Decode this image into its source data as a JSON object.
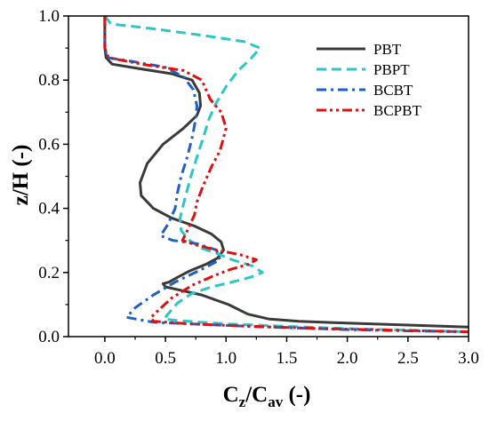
{
  "chart_data": {
    "type": "line",
    "title": "",
    "xlabel": {
      "main": "C",
      "main_sub": "z",
      "sep": "/C",
      "sep_sub": "av",
      "unit": " (-)"
    },
    "ylabel": "z/H (-)",
    "xlim": [
      -0.3,
      3.0
    ],
    "ylim": [
      0.0,
      1.0
    ],
    "xticks": [
      "0.0",
      "0.5",
      "1.0",
      "1.5",
      "2.0",
      "2.5",
      "3.0"
    ],
    "yticks": [
      "0.0",
      "0.2",
      "0.4",
      "0.6",
      "0.8",
      "1.0"
    ],
    "grid": false,
    "legend_position": "top-right",
    "series": [
      {
        "name": "PBT",
        "color": "#3a3a3a",
        "dash": "solid",
        "points": [
          [
            0.0,
            1.0
          ],
          [
            0.0,
            0.9
          ],
          [
            0.01,
            0.87
          ],
          [
            0.06,
            0.85
          ],
          [
            0.3,
            0.835
          ],
          [
            0.55,
            0.82
          ],
          [
            0.72,
            0.8
          ],
          [
            0.78,
            0.76
          ],
          [
            0.79,
            0.72
          ],
          [
            0.76,
            0.69
          ],
          [
            0.65,
            0.65
          ],
          [
            0.48,
            0.6
          ],
          [
            0.35,
            0.54
          ],
          [
            0.29,
            0.48
          ],
          [
            0.3,
            0.44
          ],
          [
            0.4,
            0.4
          ],
          [
            0.55,
            0.37
          ],
          [
            0.74,
            0.345
          ],
          [
            0.88,
            0.32
          ],
          [
            0.96,
            0.295
          ],
          [
            0.98,
            0.27
          ],
          [
            0.93,
            0.245
          ],
          [
            0.83,
            0.225
          ],
          [
            0.7,
            0.205
          ],
          [
            0.6,
            0.185
          ],
          [
            0.53,
            0.17
          ],
          [
            0.48,
            0.165
          ],
          [
            0.5,
            0.155
          ],
          [
            0.62,
            0.145
          ],
          [
            0.8,
            0.13
          ],
          [
            1.02,
            0.1
          ],
          [
            1.18,
            0.07
          ],
          [
            1.35,
            0.055
          ],
          [
            1.6,
            0.048
          ],
          [
            2.0,
            0.042
          ],
          [
            2.5,
            0.036
          ],
          [
            3.0,
            0.03
          ]
        ]
      },
      {
        "name": "PBPT",
        "color": "#2bc6c6",
        "dash": "dash",
        "points": [
          [
            0.0,
            1.0
          ],
          [
            0.05,
            0.975
          ],
          [
            0.4,
            0.96
          ],
          [
            0.8,
            0.94
          ],
          [
            1.15,
            0.92
          ],
          [
            1.28,
            0.9
          ],
          [
            1.2,
            0.865
          ],
          [
            1.1,
            0.83
          ],
          [
            1.0,
            0.78
          ],
          [
            0.92,
            0.73
          ],
          [
            0.86,
            0.68
          ],
          [
            0.82,
            0.63
          ],
          [
            0.76,
            0.56
          ],
          [
            0.71,
            0.5
          ],
          [
            0.66,
            0.43
          ],
          [
            0.62,
            0.37
          ],
          [
            0.63,
            0.33
          ],
          [
            0.7,
            0.3
          ],
          [
            0.8,
            0.275
          ],
          [
            0.92,
            0.26
          ],
          [
            1.05,
            0.24
          ],
          [
            1.22,
            0.22
          ],
          [
            1.3,
            0.2
          ],
          [
            1.2,
            0.185
          ],
          [
            1.05,
            0.17
          ],
          [
            0.88,
            0.155
          ],
          [
            0.72,
            0.135
          ],
          [
            0.6,
            0.105
          ],
          [
            0.52,
            0.07
          ],
          [
            0.49,
            0.055
          ],
          [
            0.6,
            0.05
          ],
          [
            1.0,
            0.04
          ],
          [
            1.5,
            0.032
          ],
          [
            2.0,
            0.025
          ],
          [
            2.5,
            0.02
          ],
          [
            3.0,
            0.015
          ]
        ]
      },
      {
        "name": "BCBT",
        "color": "#1f5fc8",
        "dash": "dashdot",
        "points": [
          [
            0.0,
            1.0
          ],
          [
            0.0,
            0.9
          ],
          [
            0.02,
            0.87
          ],
          [
            0.2,
            0.86
          ],
          [
            0.5,
            0.84
          ],
          [
            0.65,
            0.81
          ],
          [
            0.73,
            0.77
          ],
          [
            0.76,
            0.72
          ],
          [
            0.75,
            0.68
          ],
          [
            0.72,
            0.62
          ],
          [
            0.68,
            0.56
          ],
          [
            0.63,
            0.5
          ],
          [
            0.6,
            0.45
          ],
          [
            0.58,
            0.4
          ],
          [
            0.52,
            0.35
          ],
          [
            0.46,
            0.315
          ],
          [
            0.56,
            0.3
          ],
          [
            0.76,
            0.29
          ],
          [
            0.92,
            0.27
          ],
          [
            0.95,
            0.24
          ],
          [
            0.8,
            0.21
          ],
          [
            0.58,
            0.17
          ],
          [
            0.4,
            0.13
          ],
          [
            0.25,
            0.09
          ],
          [
            0.18,
            0.06
          ],
          [
            0.4,
            0.045
          ],
          [
            1.0,
            0.035
          ],
          [
            1.5,
            0.028
          ],
          [
            2.0,
            0.022
          ],
          [
            2.5,
            0.018
          ],
          [
            3.0,
            0.015
          ]
        ]
      },
      {
        "name": "BCPBT",
        "color": "#e01010",
        "dash": "dashdotdot",
        "points": [
          [
            0.0,
            1.0
          ],
          [
            0.0,
            0.9
          ],
          [
            0.03,
            0.87
          ],
          [
            0.3,
            0.85
          ],
          [
            0.65,
            0.83
          ],
          [
            0.8,
            0.8
          ],
          [
            0.87,
            0.74
          ],
          [
            0.96,
            0.7
          ],
          [
            1.0,
            0.65
          ],
          [
            0.95,
            0.58
          ],
          [
            0.88,
            0.53
          ],
          [
            0.81,
            0.47
          ],
          [
            0.76,
            0.42
          ],
          [
            0.74,
            0.38
          ],
          [
            0.68,
            0.33
          ],
          [
            0.64,
            0.3
          ],
          [
            0.76,
            0.285
          ],
          [
            0.92,
            0.27
          ],
          [
            1.12,
            0.255
          ],
          [
            1.25,
            0.24
          ],
          [
            1.18,
            0.225
          ],
          [
            1.04,
            0.21
          ],
          [
            0.9,
            0.19
          ],
          [
            0.72,
            0.16
          ],
          [
            0.55,
            0.12
          ],
          [
            0.45,
            0.085
          ],
          [
            0.38,
            0.06
          ],
          [
            0.4,
            0.048
          ],
          [
            0.7,
            0.04
          ],
          [
            1.2,
            0.032
          ],
          [
            1.8,
            0.025
          ],
          [
            2.4,
            0.02
          ],
          [
            3.0,
            0.015
          ]
        ]
      }
    ]
  }
}
